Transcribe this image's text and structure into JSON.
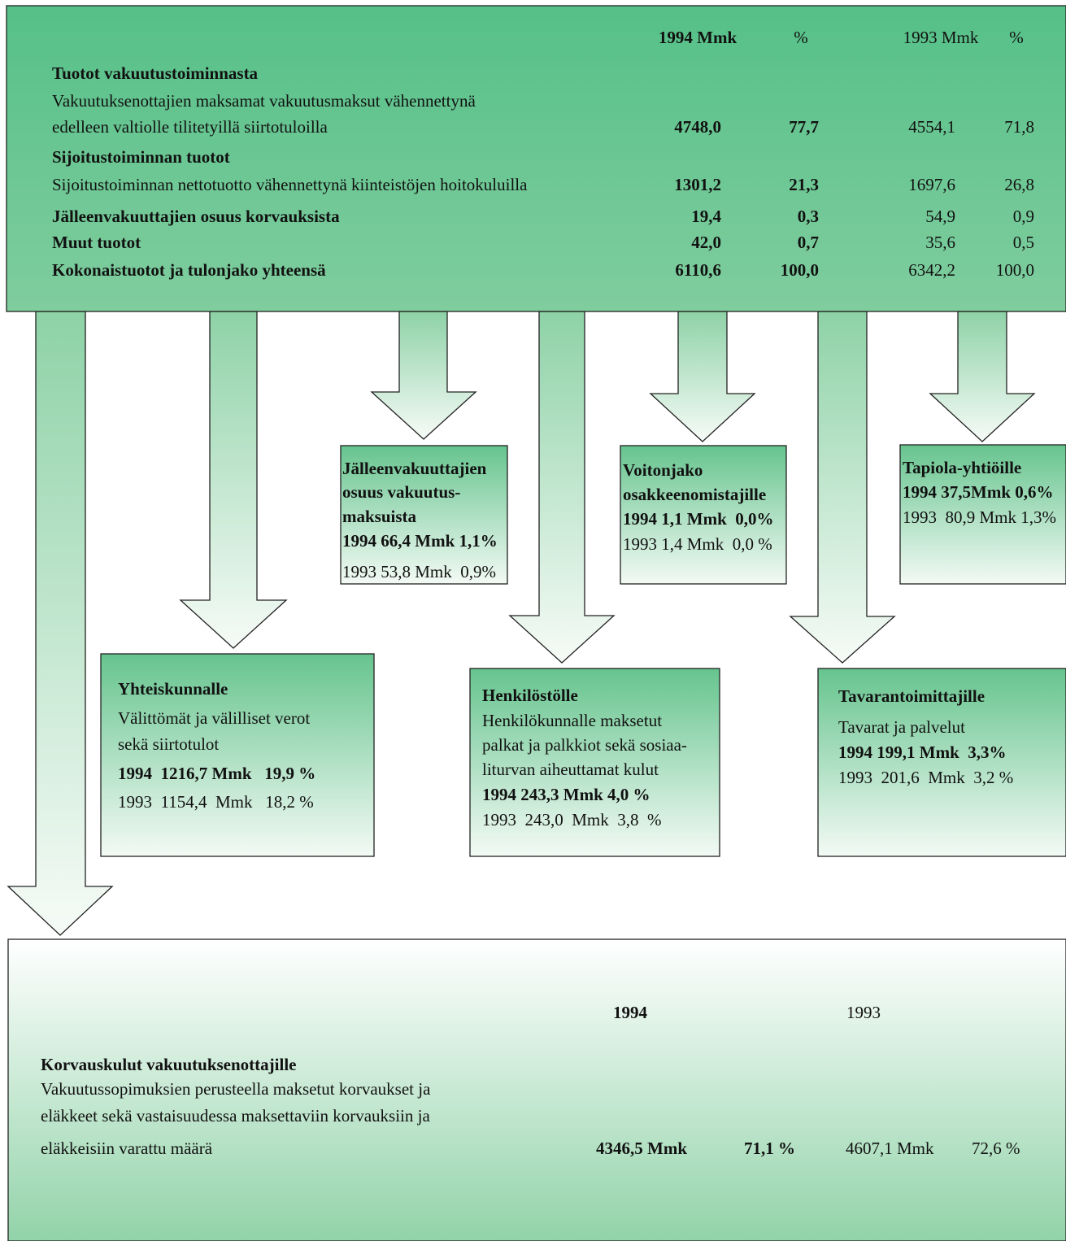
{
  "table": {
    "columns": [
      "1994 Mmk",
      "%",
      "1993 Mmk",
      "%"
    ],
    "rows": [
      {
        "label": "Tuotot vakuutustoiminnasta"
      },
      {
        "label": "Vakuutuksenottajien maksamat vakuutusmaksut vähennettynä"
      },
      {
        "label": "edelleen valtiolle tilitetyillä siirtotuloilla",
        "values": [
          "4748,0",
          "77,7",
          "4554,1",
          "71,8"
        ]
      },
      {
        "label": "Sijoitustoiminnan tuotot"
      },
      {
        "label": "Sijoitustoiminnan nettotuotto vähennettynä kiinteistöjen hoitokuluilla",
        "values": [
          "1301,2",
          "21,3",
          "1697,6",
          "26,8"
        ]
      },
      {
        "label": "Jälleenvakuuttajien osuus korvauksista",
        "values": [
          "19,4",
          "0,3",
          "54,9",
          "0,9"
        ]
      },
      {
        "label": "Muut tuotot",
        "values": [
          "42,0",
          "0,7",
          "35,6",
          "0,5"
        ]
      },
      {
        "label": "Kokonaistuotot ja tulonjako yhteensä",
        "values": [
          "6110,6",
          "100,0",
          "6342,2",
          "100,0"
        ]
      }
    ]
  },
  "boxes": [
    {
      "lines": [
        "Jälleenvakuuttajien",
        "osuus vakuutus-",
        "maksuista",
        "1994 66,4 Mmk 1,1%",
        "1993 53,8 Mmk  0,9%"
      ]
    },
    {
      "lines": [
        "Voitonjako",
        "osakkeenomistajille",
        "1994 1,1 Mmk  0,0%",
        "1993 1,4 Mmk  0,0 %"
      ]
    },
    {
      "lines": [
        "Tapiola-yhtiöille",
        "1994 37,5Mmk 0,6%",
        "1993  80,9 Mmk 1,3%"
      ]
    },
    {
      "lines": [
        "Yhteiskunnalle",
        "Välittömät ja välilliset verot",
        "sekä siirtotulot",
        "1994  1216,7 Mmk   19,9 %",
        "1993  1154,4  Mmk   18,2 %"
      ]
    },
    {
      "lines": [
        "Henkilöstölle",
        "Henkilökunnalle maksetut",
        "palkat ja palkkiot sekä sosiaa-",
        "liturvan aiheuttamat kulut",
        "1994 243,3 Mmk 4,0 %",
        "1993  243,0  Mmk  3,8  %"
      ]
    },
    {
      "lines": [
        "Tavarantoimittajille",
        "Tavarat ja palvelut",
        "1994 199,1 Mmk  3,3%",
        "1993  201,6  Mmk  3,2 %"
      ]
    }
  ],
  "bottom": {
    "columns": [
      "1994",
      "1993"
    ],
    "title": "Korvauskulut vakuutuksenottajille",
    "lines": [
      "Vakuutussopimuksien perusteella maksetut korvaukset ja",
      "eläkkeet sekä vastaisuudessa maksettaviin korvauksiin ja",
      "eläkkeisiin varattu määrä"
    ],
    "values": [
      "4346,5 Mmk",
      "71,1 %",
      "4607,1 Mmk",
      "72,6 %"
    ]
  }
}
